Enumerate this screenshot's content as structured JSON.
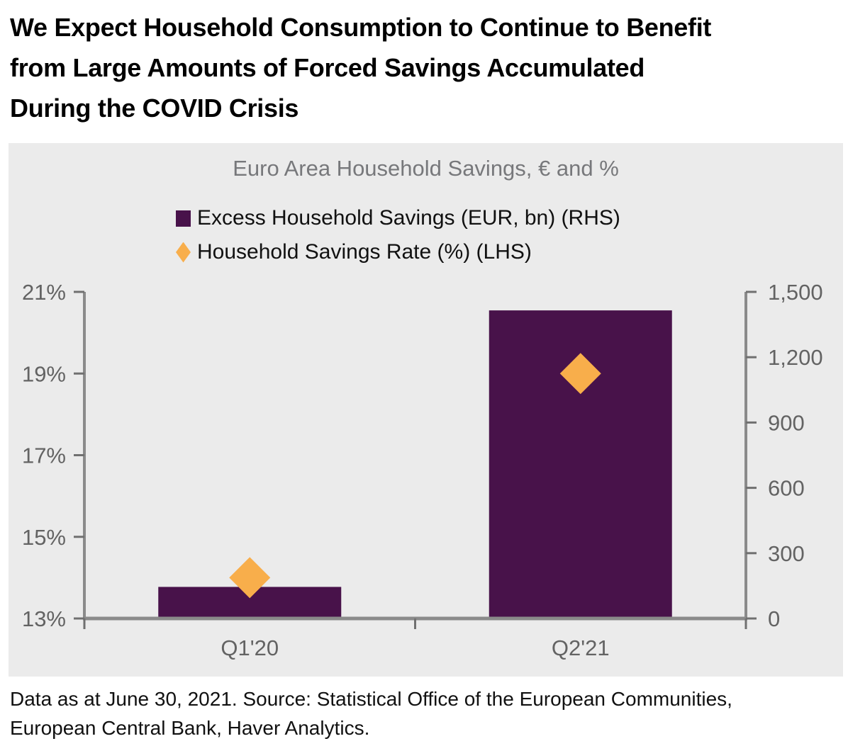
{
  "header": {
    "title_lines": [
      "We Expect Household Consumption to Continue to Benefit",
      "from Large Amounts of Forced Savings Accumulated",
      "During the COVID Crisis"
    ]
  },
  "footer": {
    "lines": [
      "Data as at June 30, 2021. Source: Statistical Office of the European Communities,",
      "European Central Bank, Haver Analytics."
    ]
  },
  "colors": {
    "panel_background": "#EBEBEB",
    "bar_purple": "#48124A",
    "diamond_orange": "#F8AE4B",
    "axis_line": "#8A8A8A",
    "tick_mark": "#707070",
    "tick_label": "#636363",
    "subtitle_gray": "#77787B"
  },
  "chart_data": {
    "type": "bar",
    "subtype": "combo-bar-and-diamond-markers-dual-axis",
    "title": "Euro Area Household Savings, € and %",
    "categories": [
      "Q1'20",
      "Q2'21"
    ],
    "series": [
      {
        "name": "Excess Household Savings (EUR, bn) (RHS)",
        "type": "bar",
        "axis": "right",
        "color": "#48124A",
        "values": [
          145,
          1415
        ]
      },
      {
        "name": "Household Savings Rate (%) (LHS)",
        "type": "scatter-diamond",
        "axis": "left",
        "color": "#F8AE4B",
        "values": [
          14.0,
          19.0
        ]
      }
    ],
    "left_axis": {
      "min": 13,
      "max": 21,
      "ticks": [
        21,
        19,
        17,
        15,
        13
      ],
      "tick_labels": [
        "21%",
        "19%",
        "17%",
        "15%",
        "13%"
      ]
    },
    "right_axis": {
      "min": 0,
      "max": 1500,
      "ticks": [
        1500,
        1200,
        900,
        600,
        300,
        0
      ],
      "tick_labels": [
        "1,500",
        "1,200",
        "900",
        "600",
        "300",
        "0"
      ]
    },
    "grid": false,
    "legend_position": "top-left-inside-plot"
  }
}
